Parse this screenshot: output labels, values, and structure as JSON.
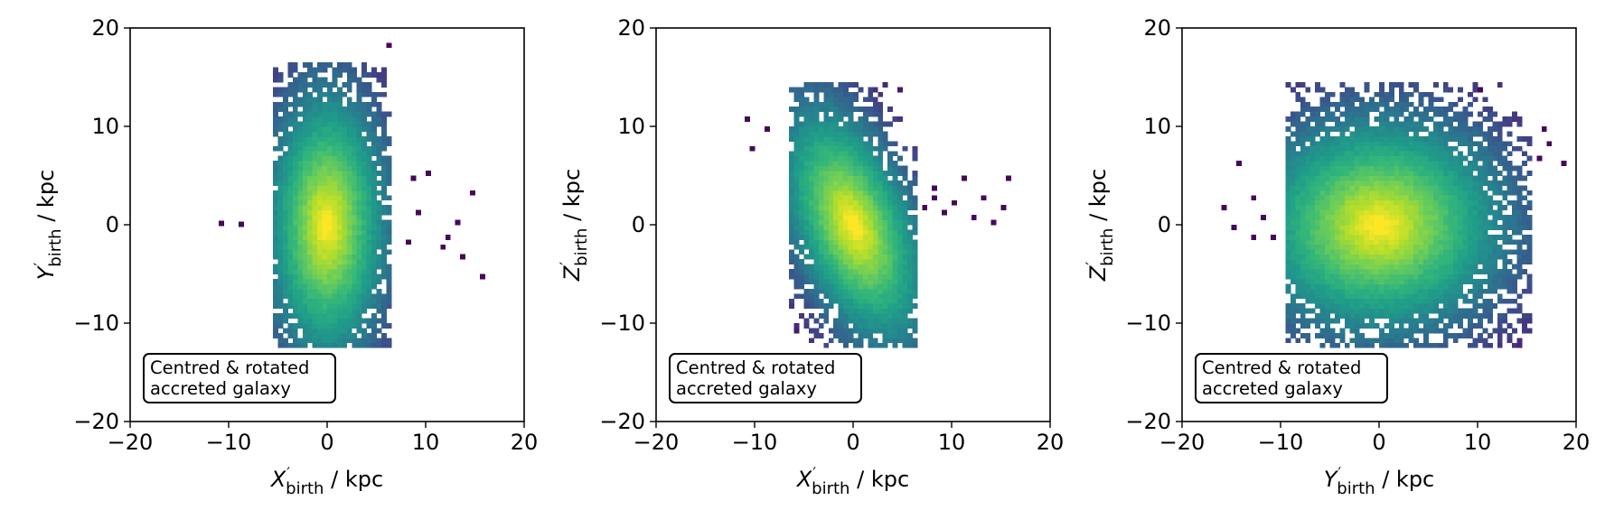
{
  "chart_data": [
    {
      "type": "heatmap",
      "subtype": "2d-histogram",
      "xlabel": {
        "sym": "X",
        "sub": "birth",
        "unit": " / kpc"
      },
      "ylabel": {
        "sym": "Y",
        "sub": "birth",
        "unit": " / kpc"
      },
      "xlim": [
        -20,
        20
      ],
      "ylim": [
        -20,
        20
      ],
      "xticks": [
        -20,
        -10,
        0,
        10,
        20
      ],
      "yticks": [
        -20,
        -10,
        0,
        10,
        20
      ],
      "tick_labels": [
        "−20",
        "−10",
        "0",
        "10",
        "20"
      ],
      "annotation": [
        "Centred & rotated",
        "accreted galaxy"
      ],
      "colormap": "viridis",
      "density_peak": [
        0,
        0
      ],
      "core_widths_kpc": [
        2.0,
        4.5
      ],
      "extent_x": [
        -5,
        6
      ],
      "extent_y": [
        -12,
        16
      ],
      "stray_points": [
        [
          -11,
          0.4
        ],
        [
          -9,
          0.3
        ],
        [
          8.5,
          5
        ],
        [
          9,
          1.5
        ],
        [
          10,
          5.5
        ],
        [
          11.5,
          -2
        ],
        [
          12,
          -1
        ],
        [
          13,
          0.5
        ],
        [
          13.5,
          -3
        ],
        [
          14.5,
          3.5
        ],
        [
          15.5,
          -5
        ],
        [
          8,
          -1.5
        ],
        [
          6,
          18.5
        ]
      ]
    },
    {
      "type": "heatmap",
      "subtype": "2d-histogram",
      "xlabel": {
        "sym": "X",
        "sub": "birth",
        "unit": " / kpc"
      },
      "ylabel": {
        "sym": "Z",
        "sub": "birth",
        "unit": " / kpc"
      },
      "xlim": [
        -20,
        20
      ],
      "ylim": [
        -20,
        20
      ],
      "xticks": [
        -20,
        -10,
        0,
        10,
        20
      ],
      "yticks": [
        -20,
        -10,
        0,
        10,
        20
      ],
      "tick_labels": [
        "−20",
        "−10",
        "0",
        "10",
        "20"
      ],
      "annotation": [
        "Centred & rotated",
        "accreted galaxy"
      ],
      "colormap": "viridis",
      "density_peak": [
        0,
        0
      ],
      "core_widths_kpc": [
        2.0,
        4.2
      ],
      "extent_x": [
        -6,
        6
      ],
      "extent_y": [
        -12,
        14
      ],
      "stray_points": [
        [
          -11,
          11
        ],
        [
          -9,
          10
        ],
        [
          -10.5,
          8
        ],
        [
          7,
          2
        ],
        [
          8,
          3
        ],
        [
          9,
          1.5
        ],
        [
          10,
          2.5
        ],
        [
          11,
          5
        ],
        [
          12,
          1
        ],
        [
          13,
          3
        ],
        [
          14,
          0.5
        ],
        [
          15,
          2
        ],
        [
          15.5,
          5
        ],
        [
          8,
          4
        ]
      ]
    },
    {
      "type": "heatmap",
      "subtype": "2d-histogram",
      "xlabel": {
        "sym": "Y",
        "sub": "birth",
        "unit": " / kpc"
      },
      "ylabel": {
        "sym": "Z",
        "sub": "birth",
        "unit": " / kpc"
      },
      "xlim": [
        -20,
        20
      ],
      "ylim": [
        -20,
        20
      ],
      "xticks": [
        -20,
        -10,
        0,
        10,
        20
      ],
      "yticks": [
        -20,
        -10,
        0,
        10,
        20
      ],
      "tick_labels": [
        "−20",
        "−10",
        "0",
        "10",
        "20"
      ],
      "annotation": [
        "Centred & rotated",
        "accreted galaxy"
      ],
      "colormap": "viridis",
      "density_peak": [
        0,
        0
      ],
      "core_widths_kpc": [
        4.2,
        3.6
      ],
      "extent_x": [
        -9,
        15
      ],
      "extent_y": [
        -12,
        14
      ],
      "stray_points": [
        [
          -16,
          2
        ],
        [
          -15,
          0
        ],
        [
          -14.5,
          6.5
        ],
        [
          -13,
          -1
        ],
        [
          -12,
          1
        ],
        [
          16,
          7
        ],
        [
          17,
          8.5
        ],
        [
          18.5,
          6.5
        ],
        [
          16.5,
          10
        ],
        [
          10,
          14
        ],
        [
          -11,
          -1
        ],
        [
          -13,
          3
        ]
      ]
    }
  ]
}
